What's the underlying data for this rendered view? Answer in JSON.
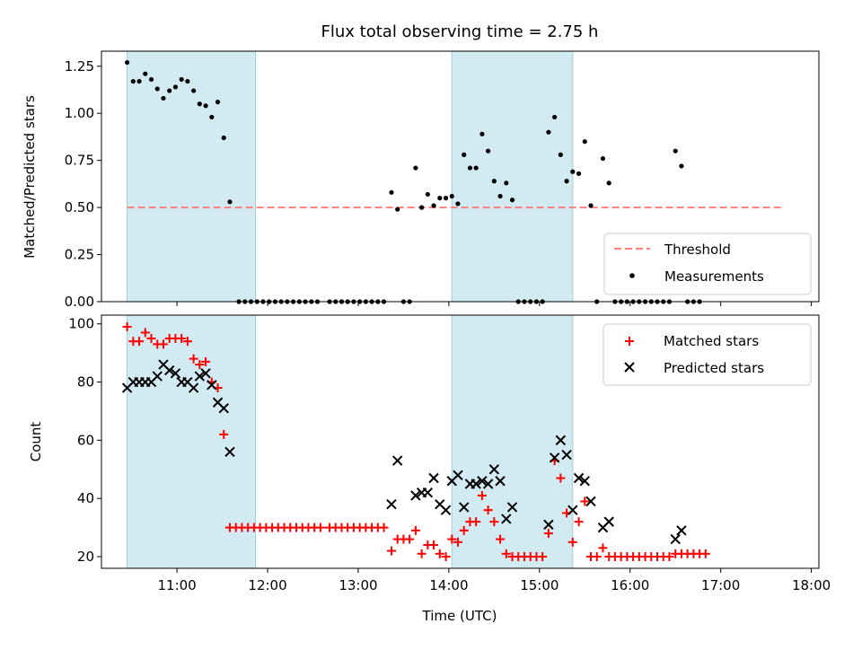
{
  "chart_data": {
    "type": "scatter",
    "title": "Flux total observing time = 2.75 h",
    "xlabel": "Time (UTC)",
    "x_tick_labels": [
      "11:00",
      "12:00",
      "13:00",
      "14:00",
      "15:00",
      "16:00",
      "17:00",
      "18:00"
    ],
    "shaded_intervals": [
      [
        "10:27",
        "11:52"
      ],
      [
        "14:02",
        "15:22"
      ]
    ],
    "shade_color": "#add8e6",
    "top_panel": {
      "ylabel": "Matched/Predicted stars",
      "ylim": [
        0,
        1.33
      ],
      "y_tick_labels": [
        "0.00",
        "0.25",
        "0.50",
        "0.75",
        "1.00",
        "1.25"
      ],
      "legend_position": "lower right",
      "threshold": {
        "name": "Threshold",
        "value": 0.5,
        "x_range": [
          "10:27",
          "17:40"
        ],
        "color": "#ff7f7f"
      },
      "measurements": {
        "name": "Measurements",
        "color": "#000000",
        "points": [
          [
            "10:27",
            1.27
          ],
          [
            "10:31",
            1.17
          ],
          [
            "10:35",
            1.17
          ],
          [
            "10:39",
            1.21
          ],
          [
            "10:43",
            1.18
          ],
          [
            "10:47",
            1.13
          ],
          [
            "10:51",
            1.08
          ],
          [
            "10:55",
            1.12
          ],
          [
            "10:59",
            1.14
          ],
          [
            "11:03",
            1.18
          ],
          [
            "11:07",
            1.17
          ],
          [
            "11:11",
            1.12
          ],
          [
            "11:15",
            1.05
          ],
          [
            "11:19",
            1.04
          ],
          [
            "11:23",
            0.98
          ],
          [
            "11:27",
            1.06
          ],
          [
            "11:31",
            0.87
          ],
          [
            "11:35",
            0.53
          ],
          [
            "11:41",
            0
          ],
          [
            "11:45",
            0
          ],
          [
            "11:49",
            0
          ],
          [
            "11:53",
            0
          ],
          [
            "11:57",
            0
          ],
          [
            "12:01",
            0
          ],
          [
            "12:05",
            0
          ],
          [
            "12:09",
            0
          ],
          [
            "12:13",
            0
          ],
          [
            "12:17",
            0
          ],
          [
            "12:21",
            0
          ],
          [
            "12:25",
            0
          ],
          [
            "12:29",
            0
          ],
          [
            "12:33",
            0
          ],
          [
            "12:41",
            0
          ],
          [
            "12:45",
            0
          ],
          [
            "12:49",
            0
          ],
          [
            "12:53",
            0
          ],
          [
            "12:57",
            0
          ],
          [
            "13:01",
            0
          ],
          [
            "13:05",
            0
          ],
          [
            "13:09",
            0
          ],
          [
            "13:13",
            0
          ],
          [
            "13:17",
            0
          ],
          [
            "13:22",
            0.58
          ],
          [
            "13:26",
            0.49
          ],
          [
            "13:30",
            0
          ],
          [
            "13:34",
            0
          ],
          [
            "13:38",
            0.71
          ],
          [
            "13:42",
            0.5
          ],
          [
            "13:46",
            0.57
          ],
          [
            "13:50",
            0.51
          ],
          [
            "13:54",
            0.55
          ],
          [
            "13:58",
            0.55
          ],
          [
            "14:02",
            0.56
          ],
          [
            "14:06",
            0.52
          ],
          [
            "14:10",
            0.78
          ],
          [
            "14:14",
            0.71
          ],
          [
            "14:18",
            0.71
          ],
          [
            "14:22",
            0.89
          ],
          [
            "14:26",
            0.8
          ],
          [
            "14:30",
            0.64
          ],
          [
            "14:34",
            0.56
          ],
          [
            "14:38",
            0.63
          ],
          [
            "14:42",
            0.54
          ],
          [
            "14:46",
            0
          ],
          [
            "14:50",
            0
          ],
          [
            "14:54",
            0
          ],
          [
            "14:58",
            0
          ],
          [
            "15:02",
            0
          ],
          [
            "15:06",
            0.9
          ],
          [
            "15:10",
            0.98
          ],
          [
            "15:14",
            0.78
          ],
          [
            "15:18",
            0.64
          ],
          [
            "15:22",
            0.69
          ],
          [
            "15:26",
            0.68
          ],
          [
            "15:30",
            0.85
          ],
          [
            "15:34",
            0.51
          ],
          [
            "15:38",
            0
          ],
          [
            "15:42",
            0.76
          ],
          [
            "15:46",
            0.63
          ],
          [
            "15:50",
            0
          ],
          [
            "15:54",
            0
          ],
          [
            "15:58",
            0
          ],
          [
            "16:02",
            0
          ],
          [
            "16:06",
            0
          ],
          [
            "16:10",
            0
          ],
          [
            "16:14",
            0
          ],
          [
            "16:18",
            0
          ],
          [
            "16:22",
            0
          ],
          [
            "16:26",
            0
          ],
          [
            "16:30",
            0.8
          ],
          [
            "16:34",
            0.72
          ],
          [
            "16:38",
            0
          ],
          [
            "16:42",
            0
          ],
          [
            "16:46",
            0
          ]
        ]
      }
    },
    "bottom_panel": {
      "ylabel": "Count",
      "ylim": [
        16,
        103
      ],
      "y_tick_labels": [
        "20",
        "40",
        "60",
        "80",
        "100"
      ],
      "legend_position": "upper right",
      "series": [
        {
          "name": "Matched stars",
          "marker": "+",
          "color": "#ff0000",
          "points": [
            [
              "10:27",
              99
            ],
            [
              "10:31",
              94
            ],
            [
              "10:35",
              94
            ],
            [
              "10:39",
              97
            ],
            [
              "10:43",
              95
            ],
            [
              "10:47",
              93
            ],
            [
              "10:51",
              93
            ],
            [
              "10:55",
              95
            ],
            [
              "10:59",
              95
            ],
            [
              "11:03",
              95
            ],
            [
              "11:07",
              94
            ],
            [
              "11:11",
              88
            ],
            [
              "11:15",
              86
            ],
            [
              "11:19",
              87
            ],
            [
              "11:23",
              80
            ],
            [
              "11:27",
              78
            ],
            [
              "11:31",
              62
            ],
            [
              "11:35",
              30
            ],
            [
              "11:39",
              30
            ],
            [
              "11:43",
              30
            ],
            [
              "11:47",
              30
            ],
            [
              "11:51",
              30
            ],
            [
              "11:55",
              30
            ],
            [
              "11:59",
              30
            ],
            [
              "12:03",
              30
            ],
            [
              "12:07",
              30
            ],
            [
              "12:11",
              30
            ],
            [
              "12:15",
              30
            ],
            [
              "12:19",
              30
            ],
            [
              "12:23",
              30
            ],
            [
              "12:27",
              30
            ],
            [
              "12:31",
              30
            ],
            [
              "12:35",
              30
            ],
            [
              "12:41",
              30
            ],
            [
              "12:45",
              30
            ],
            [
              "12:49",
              30
            ],
            [
              "12:53",
              30
            ],
            [
              "12:57",
              30
            ],
            [
              "13:01",
              30
            ],
            [
              "13:05",
              30
            ],
            [
              "13:09",
              30
            ],
            [
              "13:13",
              30
            ],
            [
              "13:17",
              30
            ],
            [
              "13:22",
              22
            ],
            [
              "13:26",
              26
            ],
            [
              "13:30",
              26
            ],
            [
              "13:34",
              26
            ],
            [
              "13:38",
              29
            ],
            [
              "13:42",
              21
            ],
            [
              "13:46",
              24
            ],
            [
              "13:50",
              24
            ],
            [
              "13:54",
              21
            ],
            [
              "13:58",
              20
            ],
            [
              "14:02",
              26
            ],
            [
              "14:06",
              25
            ],
            [
              "14:10",
              29
            ],
            [
              "14:14",
              32
            ],
            [
              "14:18",
              32
            ],
            [
              "14:22",
              41
            ],
            [
              "14:26",
              36
            ],
            [
              "14:30",
              32
            ],
            [
              "14:34",
              26
            ],
            [
              "14:38",
              21
            ],
            [
              "14:42",
              20
            ],
            [
              "14:46",
              20
            ],
            [
              "14:50",
              20
            ],
            [
              "14:54",
              20
            ],
            [
              "14:58",
              20
            ],
            [
              "15:02",
              20
            ],
            [
              "15:06",
              28
            ],
            [
              "15:10",
              53
            ],
            [
              "15:14",
              47
            ],
            [
              "15:18",
              35
            ],
            [
              "15:22",
              25
            ],
            [
              "15:26",
              32
            ],
            [
              "15:30",
              39
            ],
            [
              "15:34",
              20
            ],
            [
              "15:38",
              20
            ],
            [
              "15:42",
              23
            ],
            [
              "15:46",
              20
            ],
            [
              "15:50",
              20
            ],
            [
              "15:54",
              20
            ],
            [
              "15:58",
              20
            ],
            [
              "16:02",
              20
            ],
            [
              "16:06",
              20
            ],
            [
              "16:10",
              20
            ],
            [
              "16:14",
              20
            ],
            [
              "16:18",
              20
            ],
            [
              "16:22",
              20
            ],
            [
              "16:26",
              20
            ],
            [
              "16:30",
              21
            ],
            [
              "16:34",
              21
            ],
            [
              "16:38",
              21
            ],
            [
              "16:42",
              21
            ],
            [
              "16:46",
              21
            ],
            [
              "16:50",
              21
            ]
          ]
        },
        {
          "name": "Predicted stars",
          "marker": "x",
          "color": "#000000",
          "points": [
            [
              "10:27",
              78
            ],
            [
              "10:31",
              80
            ],
            [
              "10:35",
              80
            ],
            [
              "10:39",
              80
            ],
            [
              "10:43",
              80
            ],
            [
              "10:47",
              82
            ],
            [
              "10:51",
              86
            ],
            [
              "10:55",
              84
            ],
            [
              "10:59",
              83
            ],
            [
              "11:03",
              80
            ],
            [
              "11:07",
              80
            ],
            [
              "11:11",
              78
            ],
            [
              "11:15",
              82
            ],
            [
              "11:19",
              83
            ],
            [
              "11:23",
              79
            ],
            [
              "11:27",
              73
            ],
            [
              "11:31",
              71
            ],
            [
              "11:35",
              56
            ],
            [
              "13:22",
              38
            ],
            [
              "13:26",
              53
            ],
            [
              "13:38",
              41
            ],
            [
              "13:42",
              42
            ],
            [
              "13:46",
              42
            ],
            [
              "13:50",
              47
            ],
            [
              "13:54",
              38
            ],
            [
              "13:58",
              36
            ],
            [
              "14:02",
              46
            ],
            [
              "14:06",
              48
            ],
            [
              "14:10",
              37
            ],
            [
              "14:14",
              45
            ],
            [
              "14:18",
              45
            ],
            [
              "14:22",
              46
            ],
            [
              "14:26",
              45
            ],
            [
              "14:30",
              50
            ],
            [
              "14:34",
              46
            ],
            [
              "14:38",
              33
            ],
            [
              "14:42",
              37
            ],
            [
              "15:06",
              31
            ],
            [
              "15:10",
              54
            ],
            [
              "15:14",
              60
            ],
            [
              "15:18",
              55
            ],
            [
              "15:22",
              36
            ],
            [
              "15:26",
              47
            ],
            [
              "15:30",
              46
            ],
            [
              "15:34",
              39
            ],
            [
              "15:42",
              30
            ],
            [
              "15:46",
              32
            ],
            [
              "16:30",
              26
            ],
            [
              "16:34",
              29
            ]
          ]
        }
      ]
    }
  }
}
